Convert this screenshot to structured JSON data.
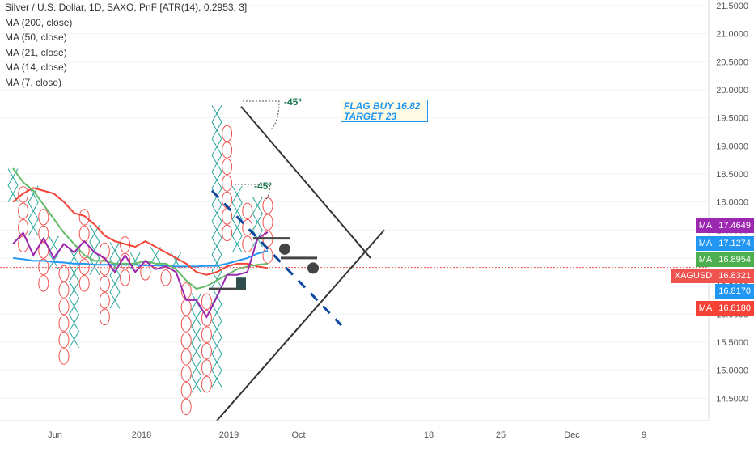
{
  "legend": {
    "title": "Silver / U.S. Dollar, 1D, SAXO, PnF [ATR(14), 0.2953, 3]",
    "ma_lines": [
      "MA (200, close)",
      "MA (50, close)",
      "MA (21, close)",
      "MA (14, close)",
      "MA (7, close)"
    ]
  },
  "annotation": {
    "line1": "FLAG BUY 16.82",
    "line2": "TARGET 23"
  },
  "angle_labels": [
    "-45º",
    "-45º"
  ],
  "price_tags": [
    {
      "name": "MA",
      "value": "17.4649",
      "color": "#9c27b0"
    },
    {
      "name": "MA",
      "value": "17.1274",
      "color": "#2196f3"
    },
    {
      "name": "MA",
      "value": "16.8954",
      "color": "#4caf50"
    },
    {
      "name": "XAGUSD",
      "value": "16.8321",
      "color": "#ef5350"
    },
    {
      "name": "",
      "value": "16.8170",
      "color": "#2196f3"
    },
    {
      "name": "MA",
      "value": "16.8180",
      "color": "#f44336"
    }
  ],
  "chart_data": {
    "type": "point-and-figure",
    "box_size": 0.2953,
    "reversal": 3,
    "y_axis": {
      "ticks": [
        "21.5000",
        "21.0000",
        "20.5000",
        "20.0000",
        "19.5000",
        "19.0000",
        "18.5000",
        "18.0000",
        "17.5000",
        "17.0000",
        "16.5000",
        "16.0000",
        "15.5000",
        "15.0000",
        "14.5000"
      ],
      "ylim": [
        14.1,
        21.6
      ]
    },
    "x_axis": {
      "ticks": [
        "Jun",
        "2018",
        "2019",
        "Oct",
        "18",
        "25",
        "Dec",
        "9"
      ]
    },
    "columns": [
      {
        "type": "X",
        "low": 18.0,
        "high": 18.65
      },
      {
        "type": "O",
        "low": 17.1,
        "high": 18.35
      },
      {
        "type": "X",
        "low": 17.4,
        "high": 18.3
      },
      {
        "type": "O",
        "low": 16.4,
        "high": 17.9
      },
      {
        "type": "X",
        "low": 16.8,
        "high": 17.3
      },
      {
        "type": "O",
        "low": 15.1,
        "high": 17.0
      },
      {
        "type": "X",
        "low": 15.4,
        "high": 17.1
      },
      {
        "type": "O",
        "low": 16.4,
        "high": 17.9
      },
      {
        "type": "X",
        "low": 16.7,
        "high": 17.6
      },
      {
        "type": "O",
        "low": 15.8,
        "high": 17.2
      },
      {
        "type": "X",
        "low": 16.1,
        "high": 17.4
      },
      {
        "type": "O",
        "low": 16.5,
        "high": 17.3
      },
      {
        "type": "X",
        "low": 16.8,
        "high": 17.2
      },
      {
        "type": "O",
        "low": 16.6,
        "high": 17.0
      },
      {
        "type": "X",
        "low": 16.9,
        "high": 17.2
      },
      {
        "type": "O",
        "low": 16.5,
        "high": 16.9
      },
      {
        "type": "X",
        "low": 16.8,
        "high": 17.1
      },
      {
        "type": "O",
        "low": 14.2,
        "high": 16.5
      },
      {
        "type": "X",
        "low": 14.6,
        "high": 16.5
      },
      {
        "type": "O",
        "low": 14.6,
        "high": 16.3
      },
      {
        "type": "X",
        "low": 14.7,
        "high": 19.6
      },
      {
        "type": "O",
        "low": 17.3,
        "high": 19.3
      },
      {
        "type": "X",
        "low": 17.1,
        "high": 18.2
      },
      {
        "type": "O",
        "low": 17.1,
        "high": 17.9
      },
      {
        "type": "X",
        "low": 17.2,
        "high": 18.1
      },
      {
        "type": "O",
        "low": 16.9,
        "high": 18.0
      }
    ],
    "ma_series": [
      {
        "name": "MA (200)",
        "color": "#2196f3",
        "values": [
          17.0,
          16.98,
          16.95,
          16.95,
          16.93,
          16.92,
          16.9,
          16.9,
          16.88,
          16.88,
          16.88,
          16.88,
          16.88,
          16.87,
          16.87,
          16.86,
          16.85,
          16.85,
          16.85,
          16.86,
          16.86,
          16.9,
          16.95,
          17.0,
          17.08,
          17.13
        ]
      },
      {
        "name": "MA (50)",
        "color": "#f44336",
        "values": [
          18.0,
          18.15,
          18.25,
          18.2,
          18.15,
          18.0,
          17.8,
          17.75,
          17.6,
          17.4,
          17.3,
          17.25,
          17.2,
          17.3,
          17.2,
          17.1,
          17.0,
          16.9,
          16.75,
          16.7,
          16.75,
          16.85,
          16.9,
          16.9,
          16.85,
          16.82
        ]
      },
      {
        "name": "MA (21)",
        "color": "#66bb6a",
        "values": [
          18.6,
          18.35,
          18.2,
          17.95,
          17.7,
          17.45,
          17.25,
          17.05,
          16.95,
          16.95,
          16.9,
          16.9,
          16.9,
          16.95,
          16.9,
          16.9,
          16.8,
          16.6,
          16.45,
          16.5,
          16.6,
          16.7,
          16.8,
          16.85,
          16.88,
          16.9
        ]
      },
      {
        "name": "MA (7)",
        "color": "#9c27b0",
        "values": [
          17.25,
          17.45,
          17.05,
          17.35,
          17.0,
          17.25,
          17.1,
          17.3,
          17.1,
          17.0,
          16.75,
          17.05,
          16.75,
          16.95,
          16.8,
          16.85,
          16.75,
          16.25,
          16.25,
          15.95,
          16.3,
          16.7,
          16.7,
          16.75,
          17.35,
          17.46
        ]
      }
    ]
  }
}
